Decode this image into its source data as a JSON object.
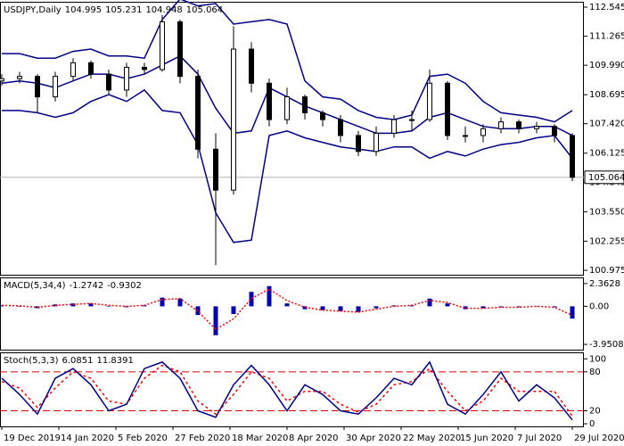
{
  "chart_data": [
    {
      "type": "candlestick",
      "title": "USDJPY,Daily",
      "last_ohlc": [
        104.995,
        105.231,
        104.948,
        105.064
      ],
      "x": [
        0,
        5,
        10,
        15,
        20,
        25,
        30,
        35,
        40,
        45,
        50,
        55,
        60,
        65,
        70,
        75,
        80,
        85,
        90,
        95,
        100,
        105,
        110,
        115,
        120,
        125,
        130,
        135,
        140,
        145,
        150,
        155,
        160
      ],
      "open": [
        109.3,
        109.4,
        109.5,
        108.6,
        109.5,
        110.1,
        109.6,
        108.9,
        109.9,
        109.8,
        111.9,
        109.5,
        106.3,
        104.5,
        110.7,
        109.2,
        107.6,
        108.6,
        107.9,
        107.6,
        106.9,
        106.2,
        107.0,
        107.6,
        107.6,
        109.2,
        106.9,
        106.9,
        107.2,
        107.5,
        107.2,
        107.3,
        106.9
      ],
      "high": [
        109.6,
        109.7,
        109.6,
        109.7,
        110.3,
        110.2,
        109.8,
        110.1,
        110.1,
        112.2,
        112.0,
        109.8,
        107.0,
        111.7,
        111.0,
        109.4,
        109.0,
        108.7,
        108.0,
        107.8,
        107.1,
        107.3,
        107.8,
        108.0,
        109.8,
        109.3,
        107.3,
        107.4,
        107.7,
        107.6,
        107.5,
        107.4,
        107.0
      ],
      "low": [
        109.1,
        109.2,
        107.9,
        108.4,
        109.3,
        109.4,
        108.7,
        108.6,
        109.6,
        109.7,
        109.2,
        105.9,
        101.2,
        104.3,
        108.8,
        107.3,
        107.4,
        107.6,
        107.3,
        106.6,
        106.0,
        106.0,
        106.8,
        107.1,
        107.5,
        106.7,
        106.6,
        106.6,
        107.0,
        107.0,
        107.0,
        106.6,
        104.9
      ],
      "close": [
        109.4,
        109.5,
        108.6,
        109.5,
        110.1,
        109.6,
        108.9,
        109.9,
        109.8,
        111.9,
        109.5,
        106.3,
        104.5,
        110.7,
        109.2,
        107.6,
        108.6,
        107.9,
        107.6,
        106.9,
        106.2,
        107.0,
        107.6,
        107.6,
        109.2,
        106.9,
        106.9,
        107.2,
        107.5,
        107.2,
        107.3,
        106.9,
        105.064
      ],
      "color": "#000000",
      "series": [
        {
          "color": "#00008b",
          "values": [
            110.5,
            110.5,
            110.3,
            110.3,
            110.6,
            110.7,
            110.4,
            110.4,
            110.3,
            112.0,
            112.9,
            112.6,
            112.7,
            111.8,
            111.9,
            112.0,
            111.8,
            109.3,
            108.6,
            108.5,
            108.0,
            107.7,
            107.6,
            107.8,
            109.5,
            109.6,
            109.2,
            108.4,
            107.9,
            107.8,
            107.7,
            107.5,
            108.0
          ]
        },
        {
          "color": "#00008b",
          "values": [
            109.2,
            109.3,
            109.2,
            109.0,
            109.3,
            109.6,
            109.6,
            109.4,
            109.6,
            110.0,
            110.4,
            109.6,
            108.1,
            107.0,
            107.1,
            109.0,
            108.6,
            108.2,
            107.9,
            107.6,
            107.3,
            107.0,
            107.0,
            107.1,
            107.7,
            107.9,
            107.6,
            107.3,
            107.2,
            107.2,
            107.3,
            107.3,
            106.9
          ]
        },
        {
          "color": "#00008b",
          "values": [
            108.0,
            108.0,
            107.9,
            107.7,
            107.9,
            108.4,
            108.7,
            108.4,
            108.9,
            108.0,
            107.9,
            106.5,
            103.5,
            102.2,
            102.3,
            106.9,
            107.1,
            106.8,
            106.6,
            106.4,
            106.3,
            106.2,
            106.4,
            106.4,
            105.9,
            106.2,
            106.0,
            106.3,
            106.5,
            106.6,
            106.8,
            106.9,
            105.9
          ]
        }
      ],
      "xlim": [
        -0.5,
        163.25
      ],
      "ylim": [
        100.78,
        112.78
      ],
      "yticks": [
        112.545,
        111.265,
        {
          "value": 109.99,
          "label": "109.990"
        },
        108.695,
        {
          "value": 107.42,
          "label": "107.420"
        },
        106.125,
        104.845,
        {
          "value": 103.55,
          "label": "103.550"
        },
        102.255,
        100.975
      ]
    },
    {
      "type": "macd",
      "title": "MACD(5,34,4)",
      "x": [
        0,
        5,
        10,
        15,
        20,
        25,
        30,
        35,
        40,
        45,
        50,
        55,
        60,
        65,
        70,
        75,
        80,
        85,
        90,
        95,
        100,
        105,
        110,
        115,
        120,
        125,
        130,
        135,
        140,
        145,
        150,
        155,
        160
      ],
      "series": [
        {
          "color": "#0000b0",
          "values": [
            0.1,
            0.0,
            -0.2,
            0.2,
            0.3,
            0.3,
            0.0,
            -0.1,
            0.1,
            0.9,
            0.8,
            -0.9,
            -3.0,
            -0.8,
            1.5,
            2.1,
            0.3,
            -0.3,
            -0.4,
            -0.5,
            -0.6,
            -0.2,
            0.1,
            0.1,
            0.8,
            0.3,
            -0.3,
            -0.2,
            -0.1,
            -0.1,
            0.0,
            -0.1,
            -1.2742
          ]
        },
        {
          "color": "#ff0000",
          "values": [
            0.1,
            0.05,
            -0.1,
            0.1,
            0.2,
            0.3,
            0.1,
            0.0,
            0.1,
            0.7,
            0.8,
            -0.5,
            -2.4,
            -1.3,
            0.8,
            1.8,
            0.6,
            -0.1,
            -0.4,
            -0.5,
            -0.6,
            -0.3,
            0.0,
            0.1,
            0.6,
            0.4,
            -0.2,
            -0.2,
            -0.1,
            -0.1,
            0.0,
            -0.1,
            -0.9302
          ]
        }
      ],
      "xlim": [
        -0.5,
        163.25
      ],
      "ylim": [
        -4.5,
        3.0
      ],
      "yticks": [
        2.3628,
        {
          "value": 0,
          "label": "0.00"
        },
        -3.9508
      ]
    },
    {
      "type": "stochastic",
      "title": "Stoch(5,3,3)",
      "x": [
        0,
        5,
        10,
        15,
        20,
        25,
        30,
        35,
        40,
        45,
        50,
        55,
        60,
        65,
        70,
        75,
        80,
        85,
        90,
        95,
        100,
        105,
        110,
        115,
        120,
        125,
        130,
        135,
        140,
        145,
        150,
        155,
        160
      ],
      "series": [
        {
          "color": "#00008b",
          "values": [
            70,
            45,
            15,
            70,
            85,
            60,
            20,
            30,
            85,
            95,
            70,
            20,
            10,
            60,
            90,
            60,
            20,
            60,
            45,
            20,
            15,
            40,
            70,
            60,
            95,
            30,
            15,
            45,
            80,
            35,
            60,
            40,
            6.0851
          ]
        },
        {
          "color": "#ff0000",
          "values": [
            65,
            55,
            25,
            55,
            80,
            70,
            35,
            30,
            70,
            90,
            80,
            35,
            15,
            45,
            80,
            70,
            35,
            50,
            50,
            30,
            18,
            30,
            60,
            65,
            85,
            50,
            20,
            35,
            70,
            50,
            50,
            50,
            11.8391
          ]
        }
      ],
      "levels": [
        80,
        20
      ],
      "levels_color": "#dd0000",
      "xlim": [
        -0.5,
        163.25
      ],
      "ylim": [
        -4,
        110
      ],
      "yticks": [
        100,
        80,
        20,
        0
      ],
      "xticks": [
        {
          "value": 0,
          "label": "19 Dec 2019"
        },
        {
          "value": 16,
          "label": "14 Jan 2020"
        },
        {
          "value": 32,
          "label": "5 Feb 2020"
        },
        {
          "value": 48,
          "label": "27 Feb 2020"
        },
        {
          "value": 64,
          "label": "18 Mar 2020"
        },
        {
          "value": 80,
          "label": "8 Apr 2020"
        },
        {
          "value": 96,
          "label": "30 Apr 2020"
        },
        {
          "value": 112,
          "label": "22 May 2020"
        },
        {
          "value": 128,
          "label": "15 Jun 2020"
        },
        {
          "value": 144,
          "label": "7 Jul 2020"
        },
        {
          "value": 160,
          "label": "29 Jul 2020"
        }
      ]
    }
  ]
}
